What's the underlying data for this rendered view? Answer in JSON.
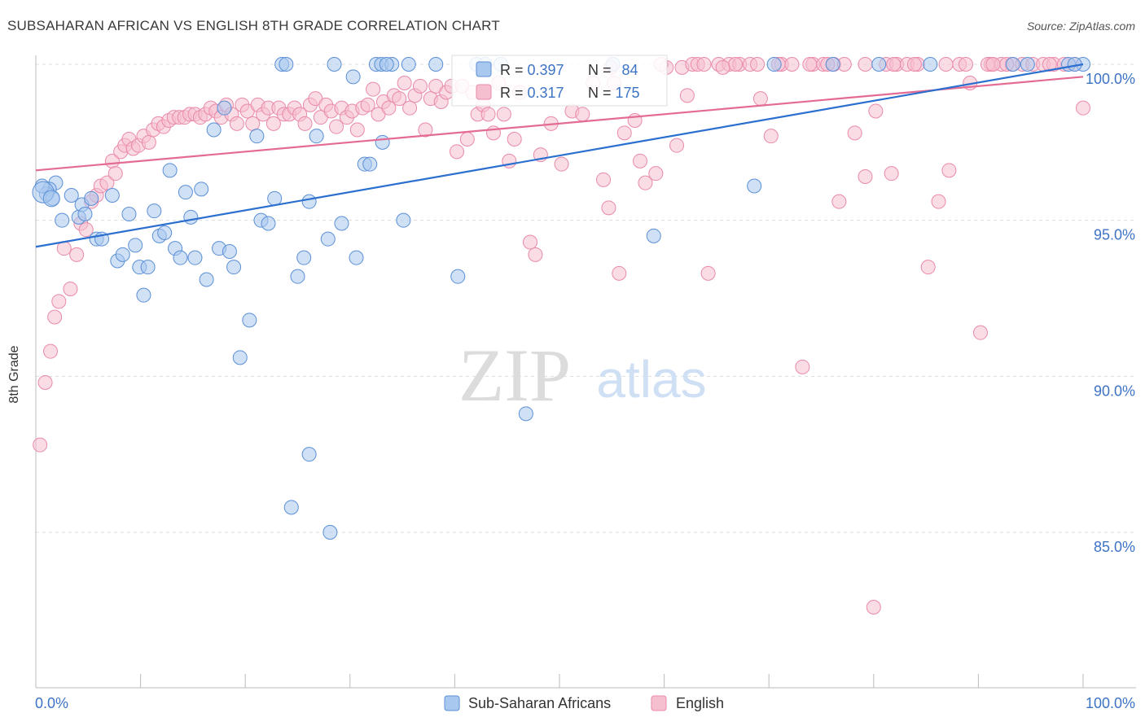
{
  "title": "SUBSAHARAN AFRICAN VS ENGLISH 8TH GRADE CORRELATION CHART",
  "source": "Source: ZipAtlas.com",
  "colors": {
    "blue_fill": "#a9c8ef",
    "blue_stroke": "#5b8fd6",
    "blue_line": "#2b6fcf",
    "pink_fill": "#f6bfd0",
    "pink_stroke": "#e98aaa",
    "pink_line": "#e36b94",
    "value_text": "#3d73c5",
    "grid": "#dddddd"
  },
  "watermark": {
    "zip": "ZIP",
    "atlas": "atlas"
  },
  "legend": {
    "rows": [
      {
        "r_label": "R = ",
        "r_value": "0.397",
        "n_label": "N = ",
        "n_value": "84"
      },
      {
        "r_label": "R = ",
        "r_value": "0.317",
        "n_label": "N = ",
        "n_value": "175"
      }
    ]
  },
  "bottom_legend": [
    "Sub-Saharan Africans",
    "English"
  ],
  "chart_data": {
    "type": "scatter",
    "title": "SUBSAHARAN AFRICAN VS ENGLISH 8TH GRADE CORRELATION CHART",
    "xlabel": "",
    "ylabel": "8th Grade",
    "xlim": [
      0,
      100
    ],
    "ylim": [
      80.0,
      100.6
    ],
    "x_tick_labels": [
      "0.0%",
      "100.0%"
    ],
    "y_ticks": [
      100,
      95,
      90,
      85
    ],
    "y_tick_labels": [
      "100.0%",
      "95.0%",
      "90.0%",
      "85.0%"
    ],
    "grid": true,
    "legend_position": "top-center",
    "series": [
      {
        "name": "Sub-Saharan Africans",
        "R": 0.397,
        "N": 84,
        "trend": {
          "x": [
            0,
            100
          ],
          "y": [
            94.15,
            100.0
          ]
        },
        "points": [
          [
            1.9,
            96.2
          ],
          [
            1.3,
            96.0
          ],
          [
            1.0,
            95.85
          ],
          [
            2.5,
            95.0
          ],
          [
            3.4,
            95.8
          ],
          [
            4.1,
            95.1
          ],
          [
            4.4,
            95.5
          ],
          [
            4.7,
            95.2
          ],
          [
            5.3,
            95.7
          ],
          [
            5.8,
            94.4
          ],
          [
            6.3,
            94.4
          ],
          [
            7.3,
            95.8
          ],
          [
            7.8,
            93.7
          ],
          [
            8.3,
            93.9
          ],
          [
            8.9,
            95.2
          ],
          [
            9.5,
            94.2
          ],
          [
            9.9,
            93.5
          ],
          [
            10.3,
            92.6
          ],
          [
            10.7,
            93.5
          ],
          [
            11.3,
            95.3
          ],
          [
            11.8,
            94.5
          ],
          [
            12.3,
            94.6
          ],
          [
            12.8,
            96.6
          ],
          [
            13.3,
            94.1
          ],
          [
            13.8,
            93.8
          ],
          [
            14.3,
            95.9
          ],
          [
            14.8,
            95.1
          ],
          [
            15.2,
            93.8
          ],
          [
            15.8,
            96.0
          ],
          [
            16.3,
            93.1
          ],
          [
            17.0,
            97.9
          ],
          [
            17.5,
            94.1
          ],
          [
            18.0,
            98.6
          ],
          [
            18.5,
            94.0
          ],
          [
            18.9,
            93.5
          ],
          [
            19.5,
            90.6
          ],
          [
            20.4,
            91.8
          ],
          [
            21.1,
            97.7
          ],
          [
            21.5,
            95.0
          ],
          [
            22.2,
            94.9
          ],
          [
            22.8,
            95.7
          ],
          [
            23.5,
            100.0
          ],
          [
            23.9,
            100.0
          ],
          [
            24.4,
            85.8
          ],
          [
            25.0,
            93.2
          ],
          [
            25.6,
            93.8
          ],
          [
            26.1,
            87.5
          ],
          [
            26.1,
            95.6
          ],
          [
            26.8,
            97.7
          ],
          [
            27.9,
            94.4
          ],
          [
            28.1,
            85.0
          ],
          [
            28.5,
            100.0
          ],
          [
            29.2,
            94.9
          ],
          [
            30.3,
            99.6
          ],
          [
            30.6,
            93.8
          ],
          [
            31.4,
            96.8
          ],
          [
            31.9,
            96.8
          ],
          [
            32.5,
            100.0
          ],
          [
            33.0,
            100.0
          ],
          [
            33.1,
            97.5
          ],
          [
            34.0,
            100.0
          ],
          [
            35.1,
            95.0
          ],
          [
            35.6,
            100.0
          ],
          [
            38.2,
            100.0
          ],
          [
            40.3,
            93.2
          ],
          [
            42.1,
            100.0
          ],
          [
            46.8,
            88.8
          ],
          [
            59.0,
            94.5
          ],
          [
            70.5,
            100.0
          ],
          [
            68.6,
            96.1
          ],
          [
            76.1,
            100.0
          ],
          [
            80.5,
            100.0
          ],
          [
            85.4,
            100.0
          ],
          [
            93.3,
            100.0
          ],
          [
            94.7,
            100.0
          ],
          [
            100.0,
            100.0
          ],
          [
            42.9,
            100.0
          ],
          [
            44.4,
            100.0
          ],
          [
            98.6,
            100.0
          ],
          [
            99.2,
            100.0
          ],
          [
            0.6,
            96.1
          ],
          [
            1.6,
            95.7
          ],
          [
            55.1,
            100.0
          ],
          [
            33.5,
            100.0
          ]
        ]
      },
      {
        "name": "English",
        "R": 0.317,
        "N": 175,
        "trend": {
          "x": [
            0,
            100
          ],
          "y": [
            96.6,
            99.6
          ]
        },
        "points": [
          [
            0.4,
            87.8
          ],
          [
            0.9,
            89.8
          ],
          [
            1.4,
            90.8
          ],
          [
            1.8,
            91.9
          ],
          [
            2.2,
            92.4
          ],
          [
            2.7,
            94.1
          ],
          [
            3.3,
            92.8
          ],
          [
            3.9,
            93.9
          ],
          [
            4.3,
            94.9
          ],
          [
            4.8,
            94.7
          ],
          [
            5.3,
            95.6
          ],
          [
            5.8,
            95.8
          ],
          [
            6.2,
            96.1
          ],
          [
            6.8,
            96.2
          ],
          [
            7.3,
            96.9
          ],
          [
            7.6,
            96.5
          ],
          [
            8.1,
            97.2
          ],
          [
            8.5,
            97.4
          ],
          [
            8.9,
            97.6
          ],
          [
            9.3,
            97.3
          ],
          [
            9.8,
            97.4
          ],
          [
            10.3,
            97.7
          ],
          [
            10.8,
            97.5
          ],
          [
            11.2,
            97.9
          ],
          [
            11.7,
            98.1
          ],
          [
            12.2,
            98.0
          ],
          [
            12.7,
            98.2
          ],
          [
            13.2,
            98.3
          ],
          [
            13.7,
            98.3
          ],
          [
            14.2,
            98.3
          ],
          [
            14.7,
            98.4
          ],
          [
            15.2,
            98.4
          ],
          [
            15.7,
            98.3
          ],
          [
            16.2,
            98.4
          ],
          [
            16.7,
            98.6
          ],
          [
            17.2,
            98.5
          ],
          [
            17.7,
            98.3
          ],
          [
            18.2,
            98.7
          ],
          [
            18.7,
            98.4
          ],
          [
            19.2,
            98.1
          ],
          [
            19.7,
            98.7
          ],
          [
            20.2,
            98.5
          ],
          [
            20.7,
            98.1
          ],
          [
            21.2,
            98.7
          ],
          [
            21.7,
            98.4
          ],
          [
            22.2,
            98.6
          ],
          [
            22.7,
            98.1
          ],
          [
            23.2,
            98.6
          ],
          [
            23.7,
            98.4
          ],
          [
            24.2,
            98.4
          ],
          [
            24.7,
            98.6
          ],
          [
            25.2,
            98.4
          ],
          [
            25.7,
            98.1
          ],
          [
            26.2,
            98.7
          ],
          [
            26.7,
            98.9
          ],
          [
            27.2,
            98.3
          ],
          [
            27.7,
            98.7
          ],
          [
            28.2,
            98.5
          ],
          [
            28.7,
            98.0
          ],
          [
            29.2,
            98.6
          ],
          [
            29.7,
            98.3
          ],
          [
            30.2,
            98.5
          ],
          [
            30.7,
            97.9
          ],
          [
            31.2,
            98.6
          ],
          [
            31.7,
            98.7
          ],
          [
            32.2,
            99.2
          ],
          [
            32.7,
            98.4
          ],
          [
            33.2,
            98.8
          ],
          [
            33.7,
            98.6
          ],
          [
            34.2,
            99.0
          ],
          [
            34.7,
            98.9
          ],
          [
            35.2,
            99.4
          ],
          [
            35.7,
            98.6
          ],
          [
            36.2,
            99.0
          ],
          [
            36.7,
            99.3
          ],
          [
            37.2,
            97.9
          ],
          [
            37.7,
            98.9
          ],
          [
            38.2,
            99.3
          ],
          [
            38.7,
            98.8
          ],
          [
            39.2,
            99.1
          ],
          [
            39.7,
            99.3
          ],
          [
            40.2,
            97.2
          ],
          [
            40.7,
            99.3
          ],
          [
            41.2,
            97.6
          ],
          [
            41.7,
            99.1
          ],
          [
            42.2,
            98.4
          ],
          [
            42.7,
            98.7
          ],
          [
            43.2,
            98.4
          ],
          [
            43.7,
            97.8
          ],
          [
            44.2,
            99.4
          ],
          [
            44.7,
            98.4
          ],
          [
            45.2,
            96.9
          ],
          [
            45.7,
            97.6
          ],
          [
            46.2,
            99.1
          ],
          [
            47.2,
            94.3
          ],
          [
            47.7,
            93.9
          ],
          [
            48.2,
            97.1
          ],
          [
            49.2,
            98.1
          ],
          [
            50.2,
            96.8
          ],
          [
            51.2,
            98.5
          ],
          [
            52.2,
            98.4
          ],
          [
            53.2,
            99.4
          ],
          [
            54.2,
            96.3
          ],
          [
            54.7,
            95.4
          ],
          [
            55.2,
            99.4
          ],
          [
            55.7,
            93.3
          ],
          [
            56.2,
            97.8
          ],
          [
            57.2,
            98.2
          ],
          [
            57.7,
            96.9
          ],
          [
            58.2,
            96.2
          ],
          [
            59.2,
            96.5
          ],
          [
            60.2,
            99.9
          ],
          [
            61.2,
            97.4
          ],
          [
            61.7,
            99.9
          ],
          [
            62.2,
            99.0
          ],
          [
            62.7,
            100.0
          ],
          [
            63.2,
            100.0
          ],
          [
            64.2,
            93.3
          ],
          [
            65.2,
            100.0
          ],
          [
            66.2,
            100.0
          ],
          [
            67.2,
            100.0
          ],
          [
            68.2,
            100.0
          ],
          [
            69.2,
            98.9
          ],
          [
            70.2,
            97.7
          ],
          [
            71.2,
            100.0
          ],
          [
            72.2,
            100.0
          ],
          [
            73.2,
            90.3
          ],
          [
            74.2,
            100.0
          ],
          [
            75.2,
            100.0
          ],
          [
            76.2,
            100.0
          ],
          [
            76.7,
            95.6
          ],
          [
            77.2,
            100.0
          ],
          [
            78.2,
            97.8
          ],
          [
            79.2,
            96.4
          ],
          [
            80.2,
            98.5
          ],
          [
            81.2,
            100.0
          ],
          [
            81.7,
            96.5
          ],
          [
            82.2,
            100.0
          ],
          [
            83.2,
            100.0
          ],
          [
            84.2,
            100.0
          ],
          [
            85.2,
            93.5
          ],
          [
            86.2,
            95.6
          ],
          [
            87.2,
            96.6
          ],
          [
            88.2,
            100.0
          ],
          [
            89.2,
            99.4
          ],
          [
            90.2,
            91.4
          ],
          [
            91.2,
            100.0
          ],
          [
            92.2,
            100.0
          ],
          [
            93.2,
            100.0
          ],
          [
            94.2,
            100.0
          ],
          [
            95.2,
            100.0
          ],
          [
            96.2,
            100.0
          ],
          [
            97.2,
            100.0
          ],
          [
            98.2,
            100.0
          ],
          [
            99.2,
            100.0
          ],
          [
            100.0,
            98.6
          ],
          [
            80.0,
            82.6
          ],
          [
            86.9,
            100.0
          ],
          [
            73.9,
            100.0
          ],
          [
            63.8,
            100.0
          ],
          [
            70.9,
            100.0
          ],
          [
            83.9,
            100.0
          ],
          [
            90.9,
            100.0
          ],
          [
            54.9,
            99.9
          ],
          [
            88.8,
            100.0
          ],
          [
            68.9,
            100.0
          ],
          [
            59.7,
            100.0
          ],
          [
            66.8,
            100.0
          ],
          [
            79.2,
            100.0
          ],
          [
            92.7,
            100.0
          ],
          [
            96.8,
            100.0
          ],
          [
            75.6,
            100.0
          ],
          [
            65.6,
            99.9
          ],
          [
            91.4,
            100.0
          ],
          [
            81.9,
            100.0
          ]
        ]
      }
    ]
  }
}
